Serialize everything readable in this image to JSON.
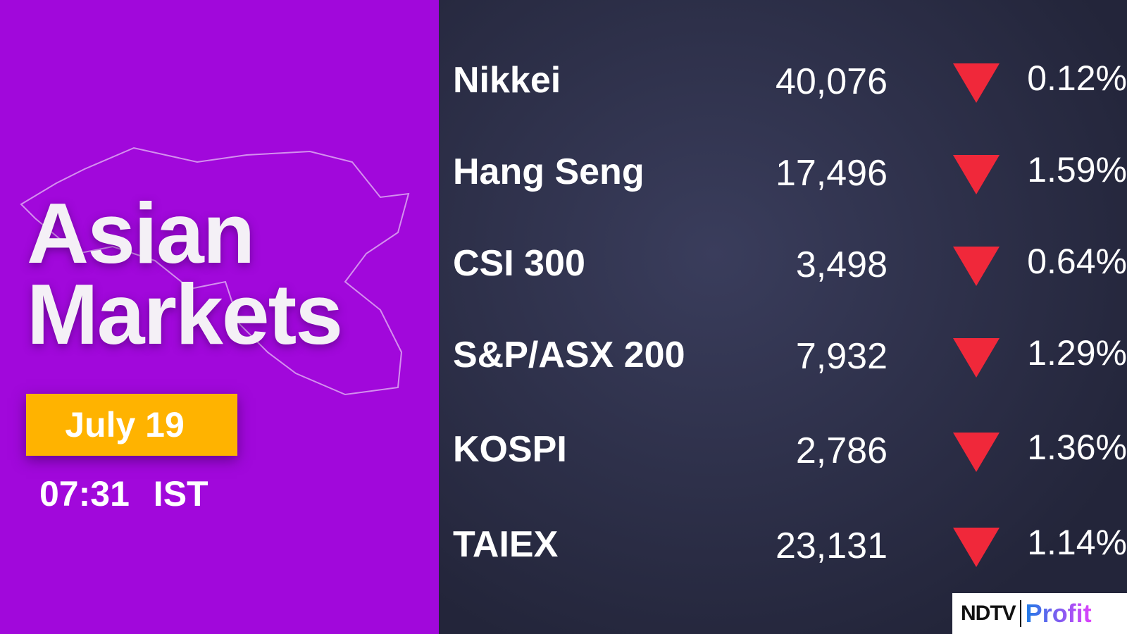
{
  "left": {
    "title_line1": "Asian",
    "title_line2": "Markets",
    "date": "July 19",
    "time": "07:31",
    "timezone": "IST"
  },
  "colors": {
    "panel": "#a108db",
    "date_badge": "#ffb300",
    "down": "#f0283a"
  },
  "markets": [
    {
      "name": "Nikkei",
      "value": "40,076",
      "direction": "down",
      "change": "0.12%"
    },
    {
      "name": "Hang Seng",
      "value": "17,496",
      "direction": "down",
      "change": "1.59%"
    },
    {
      "name": "CSI 300",
      "value": "3,498",
      "direction": "down",
      "change": "0.64%"
    },
    {
      "name": "S&P/ASX 200",
      "value": "7,932",
      "direction": "down",
      "change": "1.29%"
    },
    {
      "name": "KOSPI",
      "value": "2,786",
      "direction": "down",
      "change": "1.36%"
    },
    {
      "name": "TAIEX",
      "value": "23,131",
      "direction": "down",
      "change": "1.14%"
    }
  ],
  "logo": {
    "brand": "NDTV",
    "product": "Profit"
  }
}
